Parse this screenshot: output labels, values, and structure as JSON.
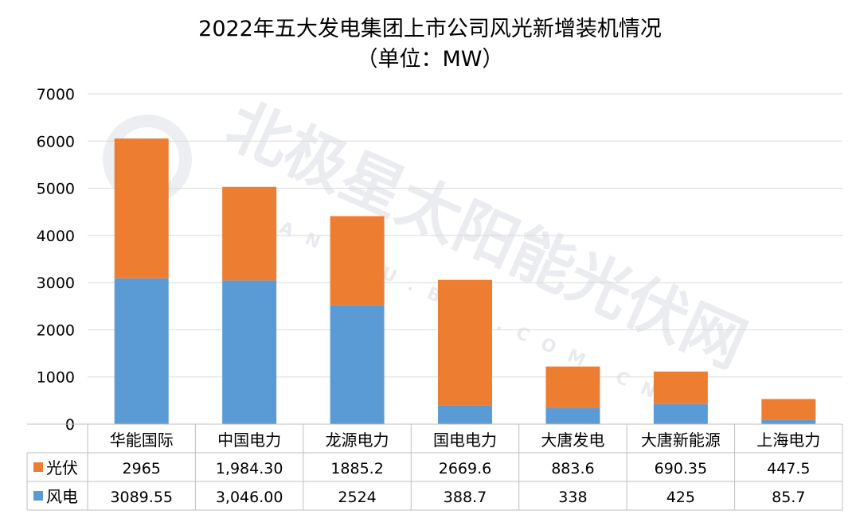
{
  "chart_data": {
    "type": "bar",
    "stacked": true,
    "title": "2022年五大发电集团上市公司风光新增装机情况",
    "subtitle": "（单位：MW）",
    "categories": [
      "华能国际",
      "中国电力",
      "龙源电力",
      "国电电力",
      "大唐发电",
      "大唐新能源",
      "上海电力"
    ],
    "series": [
      {
        "name": "风电",
        "color": "#5b9bd5",
        "values": [
          3089.55,
          3046.0,
          2524,
          388.7,
          338,
          425,
          85.7
        ],
        "labels": [
          "3089.55",
          "3,046.00",
          "2524",
          "388.7",
          "338",
          "425",
          "85.7"
        ]
      },
      {
        "name": "光伏",
        "color": "#ed7d31",
        "values": [
          2965,
          1984.3,
          1885.2,
          2669.6,
          883.6,
          690.35,
          447.5
        ],
        "labels": [
          "2965",
          "1,984.30",
          "1885.2",
          "2669.6",
          "883.6",
          "690.35",
          "447.5"
        ]
      }
    ],
    "ylim": [
      0,
      7000
    ],
    "yticks": [
      0,
      1000,
      2000,
      3000,
      4000,
      5000,
      6000,
      7000
    ],
    "grid": true,
    "data_table": true,
    "watermark": {
      "text": "北极星太阳能光伏网",
      "subtext": "GUANGFU.BJX.COM.CN"
    }
  }
}
